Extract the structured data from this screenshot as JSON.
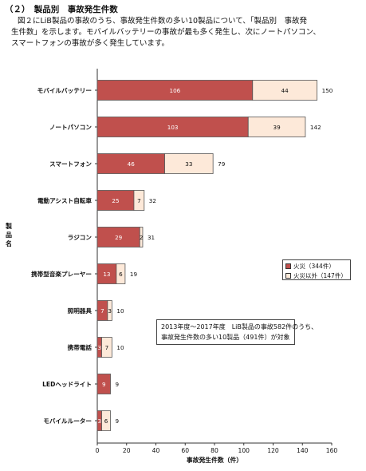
{
  "heading": "（２）　製品別　事故発生件数",
  "intro_lines": [
    "図２にLiB製品の事故のうち、事故発生件数の多い10製品について、「製品別　事故発",
    "生件数」を示します。モバイルバッテリーの事故が最も多く発生し、次にノートパソコン、",
    "スマートフォンの事故が多く発生しています。"
  ],
  "y_axis_label_chars": [
    "製",
    "品",
    "名"
  ],
  "note_lines": [
    "2013年度～2017年度　LiB製品の事故582件のうち、",
    "事故発生件数の多い10製品（491件）が対象"
  ],
  "colors": {
    "fire": "#c0504d",
    "other": "#fde9d9",
    "edge": "#555555"
  },
  "chart_data": {
    "type": "bar",
    "orientation": "horizontal",
    "stacked": true,
    "categories": [
      "モバイルバッテリー",
      "ノートパソコン",
      "スマートフォン",
      "電動アシスト自転車",
      "ラジコン",
      "携帯型音楽プレーヤー",
      "照明器具",
      "携帯電話",
      "LEDヘッドライト",
      "モバイルルーター"
    ],
    "series": [
      {
        "name": "火災（344件）",
        "values": [
          106,
          103,
          46,
          25,
          29,
          13,
          7,
          3,
          9,
          3
        ]
      },
      {
        "name": "火災以外（147件）",
        "values": [
          44,
          39,
          33,
          7,
          2,
          6,
          3,
          7,
          0,
          6
        ]
      }
    ],
    "totals": [
      150,
      142,
      79,
      32,
      31,
      19,
      10,
      10,
      9,
      9
    ],
    "xlabel": "事故発生件数（件）",
    "xlim": [
      0,
      160
    ],
    "xticks": [
      0,
      20,
      40,
      60,
      80,
      100,
      120,
      140,
      160
    ],
    "grid": false,
    "legend_position": "right"
  }
}
